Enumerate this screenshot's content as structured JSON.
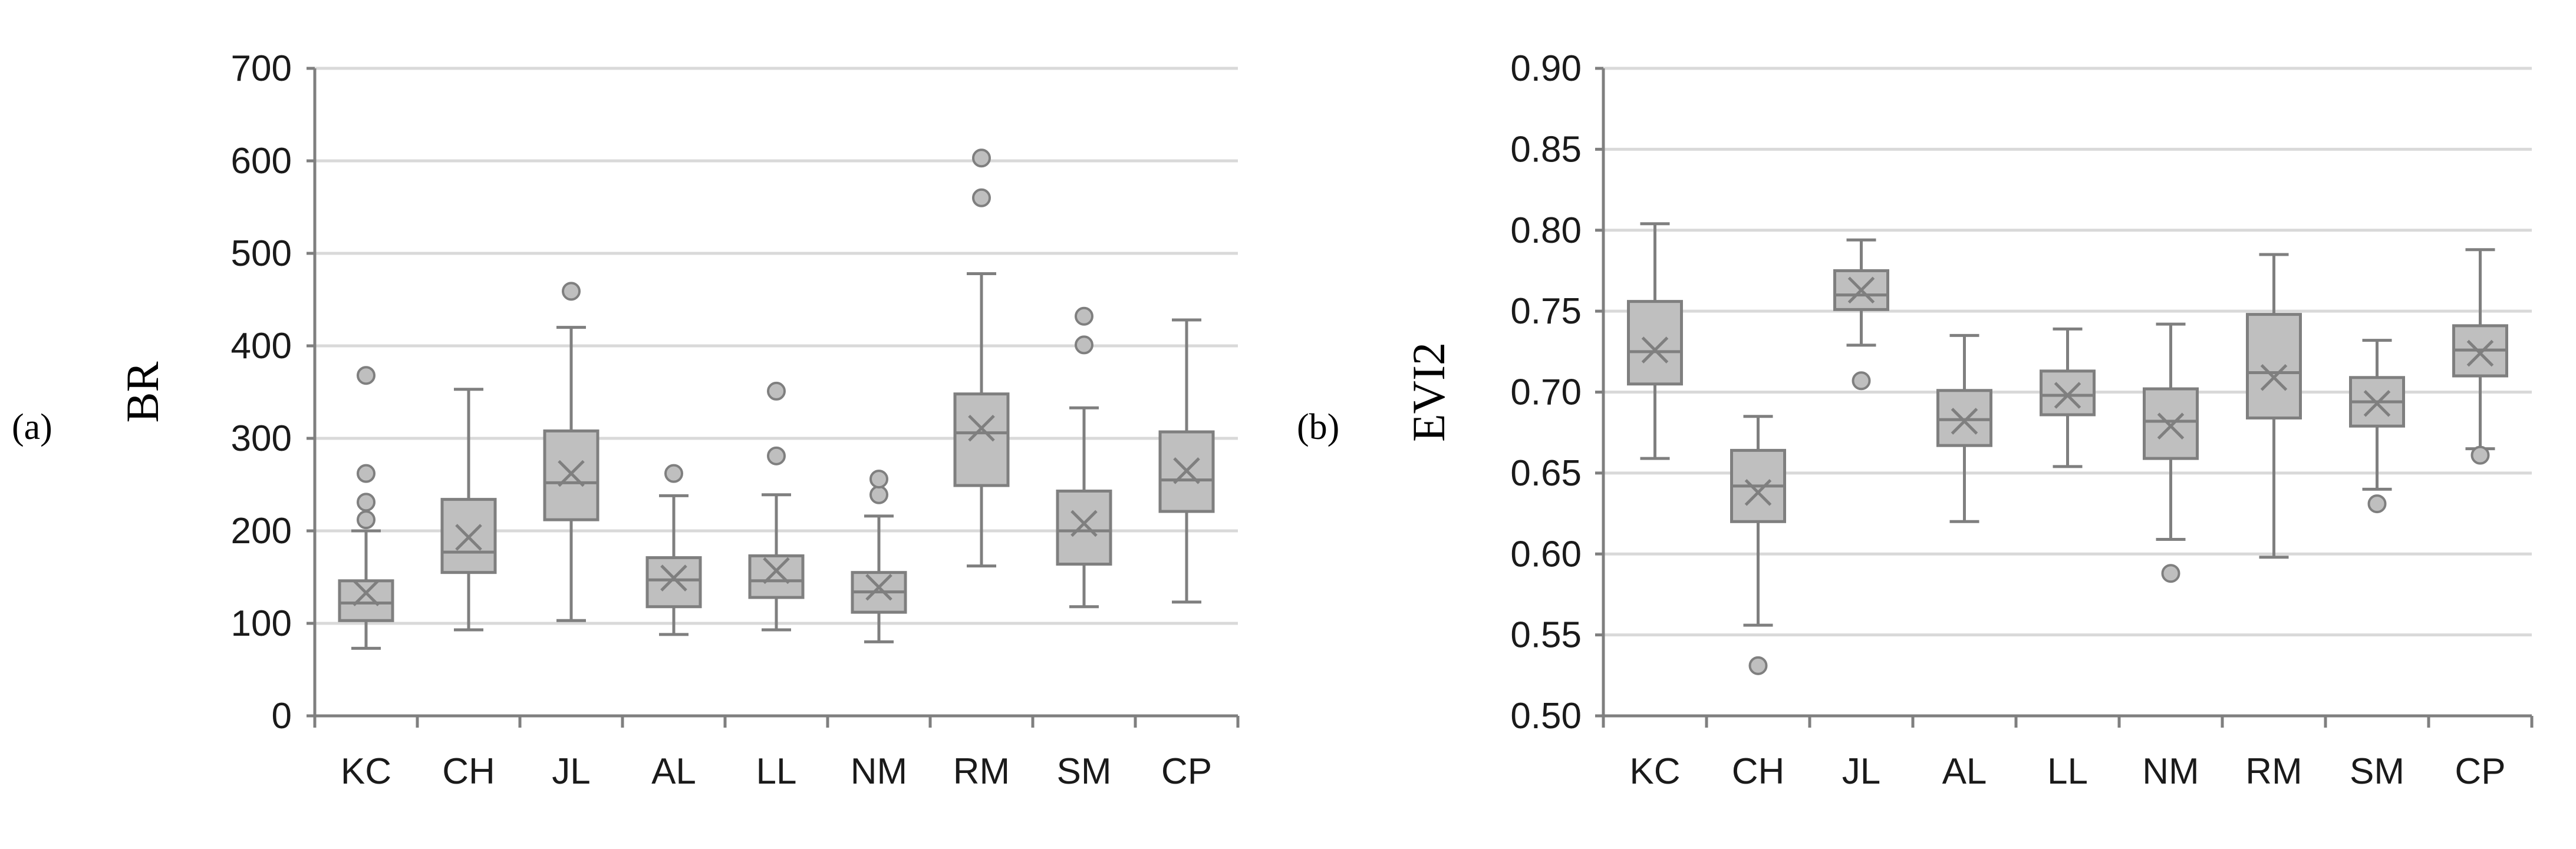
{
  "chart_data": [
    {
      "type": "boxplot",
      "panel_label": "(a)",
      "ylabel": "BR",
      "ylim": [
        0,
        700
      ],
      "yticks": [
        "0",
        "100",
        "200",
        "300",
        "400",
        "500",
        "600",
        "700"
      ],
      "categories": [
        "KC",
        "CH",
        "JL",
        "AL",
        "LL",
        "NM",
        "RM",
        "SM",
        "CP"
      ],
      "boxes": [
        {
          "min": 73,
          "q1": 103,
          "median": 122,
          "q3": 146,
          "max": 200,
          "mean": 133,
          "outliers": [
            212,
            231,
            262,
            368
          ]
        },
        {
          "min": 93,
          "q1": 155,
          "median": 177,
          "q3": 234,
          "max": 353,
          "mean": 193,
          "outliers": []
        },
        {
          "min": 103,
          "q1": 212,
          "median": 252,
          "q3": 308,
          "max": 420,
          "mean": 262,
          "outliers": [
            459
          ]
        },
        {
          "min": 88,
          "q1": 118,
          "median": 147,
          "q3": 171,
          "max": 238,
          "mean": 149,
          "outliers": [
            262
          ]
        },
        {
          "min": 93,
          "q1": 128,
          "median": 146,
          "q3": 173,
          "max": 239,
          "mean": 157,
          "outliers": [
            281,
            351
          ]
        },
        {
          "min": 80,
          "q1": 112,
          "median": 134,
          "q3": 155,
          "max": 216,
          "mean": 139,
          "outliers": [
            239,
            256
          ]
        },
        {
          "min": 162,
          "q1": 249,
          "median": 306,
          "q3": 348,
          "max": 478,
          "mean": 311,
          "outliers": [
            560,
            603
          ]
        },
        {
          "min": 118,
          "q1": 164,
          "median": 200,
          "q3": 243,
          "max": 333,
          "mean": 208,
          "outliers": [
            401,
            432
          ]
        },
        {
          "min": 123,
          "q1": 221,
          "median": 255,
          "q3": 307,
          "max": 428,
          "mean": 265,
          "outliers": []
        }
      ]
    },
    {
      "type": "boxplot",
      "panel_label": "(b)",
      "ylabel": "EVI2",
      "ylim": [
        0.5,
        0.9
      ],
      "yticks": [
        "0.50",
        "0.55",
        "0.60",
        "0.65",
        "0.70",
        "0.75",
        "0.80",
        "0.85",
        "0.90"
      ],
      "categories": [
        "KC",
        "CH",
        "JL",
        "AL",
        "LL",
        "NM",
        "RM",
        "SM",
        "CP"
      ],
      "boxes": [
        {
          "min": 0.659,
          "q1": 0.705,
          "median": 0.725,
          "q3": 0.756,
          "max": 0.804,
          "mean": 0.726,
          "outliers": []
        },
        {
          "min": 0.556,
          "q1": 0.62,
          "median": 0.642,
          "q3": 0.664,
          "max": 0.685,
          "mean": 0.638,
          "outliers": [
            0.531
          ]
        },
        {
          "min": 0.729,
          "q1": 0.751,
          "median": 0.76,
          "q3": 0.775,
          "max": 0.794,
          "mean": 0.763,
          "outliers": [
            0.707
          ]
        },
        {
          "min": 0.62,
          "q1": 0.667,
          "median": 0.683,
          "q3": 0.701,
          "max": 0.735,
          "mean": 0.682,
          "outliers": []
        },
        {
          "min": 0.654,
          "q1": 0.686,
          "median": 0.698,
          "q3": 0.713,
          "max": 0.739,
          "mean": 0.698,
          "outliers": []
        },
        {
          "min": 0.609,
          "q1": 0.659,
          "median": 0.682,
          "q3": 0.702,
          "max": 0.742,
          "mean": 0.679,
          "outliers": [
            0.588
          ]
        },
        {
          "min": 0.598,
          "q1": 0.684,
          "median": 0.712,
          "q3": 0.748,
          "max": 0.785,
          "mean": 0.709,
          "outliers": []
        },
        {
          "min": 0.64,
          "q1": 0.679,
          "median": 0.694,
          "q3": 0.709,
          "max": 0.732,
          "mean": 0.693,
          "outliers": [
            0.631
          ]
        },
        {
          "min": 0.665,
          "q1": 0.71,
          "median": 0.726,
          "q3": 0.741,
          "max": 0.788,
          "mean": 0.724,
          "outliers": [
            0.661
          ]
        }
      ]
    }
  ]
}
